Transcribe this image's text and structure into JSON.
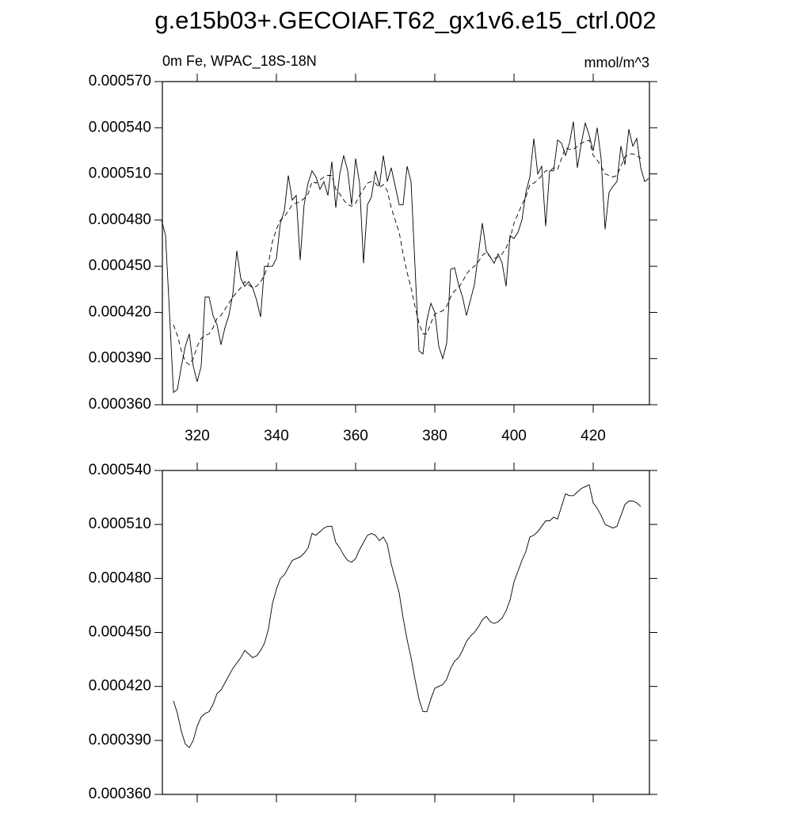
{
  "chart_data": [
    {
      "type": "line",
      "title": "g.e15b03+.GECOIAF.T62_gx1v6.e15_ctrl.002",
      "left_string": "0m Fe, WPAC_18S-18N",
      "right_string": "mmol/m^3",
      "x": [
        311,
        312,
        313,
        314,
        315,
        316,
        317,
        318,
        319,
        320,
        321,
        322,
        323,
        324,
        325,
        326,
        327,
        328,
        329,
        330,
        331,
        332,
        333,
        334,
        335,
        336,
        337,
        338,
        339,
        340,
        341,
        342,
        343,
        344,
        345,
        346,
        347,
        348,
        349,
        350,
        351,
        352,
        353,
        354,
        355,
        356,
        357,
        358,
        359,
        360,
        361,
        362,
        363,
        364,
        365,
        366,
        367,
        368,
        369,
        370,
        371,
        372,
        373,
        374,
        375,
        376,
        377,
        378,
        379,
        380,
        381,
        382,
        383,
        384,
        385,
        386,
        387,
        388,
        389,
        390,
        391,
        392,
        393,
        394,
        395,
        396,
        397,
        398,
        399,
        400,
        401,
        402,
        403,
        404,
        405,
        406,
        407,
        408,
        409,
        410,
        411,
        412,
        413,
        414,
        415,
        416,
        417,
        418,
        419,
        420,
        421,
        422,
        423,
        424,
        425,
        426,
        427,
        428,
        429,
        430,
        431,
        432,
        433,
        434
      ],
      "series": [
        {
          "color": "#000000",
          "style": "solid",
          "values": [
            0.00048,
            0.00047,
            0.00042,
            0.000368,
            0.00037,
            0.000385,
            0.000398,
            0.000406,
            0.000385,
            0.000375,
            0.000385,
            0.00043,
            0.00043,
            0.000418,
            0.000412,
            0.000399,
            0.00041,
            0.000418,
            0.000432,
            0.00046,
            0.000442,
            0.000437,
            0.00044,
            0.000436,
            0.000428,
            0.000417,
            0.00045,
            0.00045,
            0.00045,
            0.000455,
            0.000478,
            0.000486,
            0.000509,
            0.000493,
            0.000496,
            0.000454,
            0.00049,
            0.000504,
            0.000512,
            0.000508,
            0.0005,
            0.000505,
            0.000496,
            0.000518,
            0.000488,
            0.00051,
            0.000522,
            0.000512,
            0.00049,
            0.00052,
            0.000504,
            0.000452,
            0.00049,
            0.000495,
            0.000512,
            0.000502,
            0.000522,
            0.000505,
            0.000514,
            0.000502,
            0.00049,
            0.00049,
            0.000515,
            0.000505,
            0.00045,
            0.000395,
            0.000393,
            0.000415,
            0.000426,
            0.00042,
            0.000398,
            0.00039,
            0.0004,
            0.000448,
            0.000449,
            0.000438,
            0.00043,
            0.000418,
            0.000428,
            0.000438,
            0.000458,
            0.000478,
            0.00046,
            0.000456,
            0.000452,
            0.000458,
            0.000452,
            0.000437,
            0.00047,
            0.000468,
            0.000472,
            0.00048,
            0.000498,
            0.000508,
            0.000533,
            0.00051,
            0.000515,
            0.000476,
            0.000512,
            0.000512,
            0.000532,
            0.00053,
            0.000522,
            0.00053,
            0.000544,
            0.000514,
            0.00053,
            0.000543,
            0.000535,
            0.000525,
            0.00054,
            0.00052,
            0.000474,
            0.000498,
            0.000502,
            0.000505,
            0.000528,
            0.000516,
            0.000539,
            0.000528,
            0.000533,
            0.000514,
            0.000505,
            0.000507
          ]
        },
        {
          "color": "#000000",
          "style": "dashed",
          "values": [
            null,
            null,
            null,
            0.000412,
            0.000405,
            0.000395,
            0.000388,
            0.000386,
            0.00039,
            0.000398,
            0.000403,
            0.000405,
            0.000406,
            0.00041,
            0.000416,
            0.000418,
            0.000422,
            0.000426,
            0.00043,
            0.000433,
            0.000436,
            0.00044,
            0.000438,
            0.000436,
            0.000437,
            0.00044,
            0.000444,
            0.000452,
            0.000466,
            0.000474,
            0.00048,
            0.000482,
            0.000486,
            0.00049,
            0.000491,
            0.000492,
            0.000494,
            0.000497,
            0.000505,
            0.000504,
            0.000506,
            0.000508,
            0.000509,
            0.000509,
            0.0005,
            0.000497,
            0.000493,
            0.00049,
            0.000489,
            0.000491,
            0.000496,
            0.0005,
            0.000504,
            0.000505,
            0.000504,
            0.000501,
            0.000503,
            0.000499,
            0.000488,
            0.00048,
            0.000472,
            0.000458,
            0.000446,
            0.000436,
            0.000424,
            0.000413,
            0.000406,
            0.000406,
            0.000413,
            0.000419,
            0.00042,
            0.000421,
            0.000424,
            0.00043,
            0.000434,
            0.000436,
            0.00044,
            0.000445,
            0.000448,
            0.00045,
            0.000453,
            0.000457,
            0.000459,
            0.000456,
            0.000455,
            0.000456,
            0.000458,
            0.000462,
            0.000468,
            0.000478,
            0.000484,
            0.00049,
            0.000495,
            0.000503,
            0.000504,
            0.000506,
            0.000509,
            0.000512,
            0.000512,
            0.000514,
            0.000513,
            0.00052,
            0.000527,
            0.000526,
            0.000526,
            0.000528,
            0.00053,
            0.000531,
            0.000532,
            0.000522,
            0.000519,
            0.000515,
            0.00051,
            0.000509,
            0.000508,
            0.000509,
            0.000515,
            0.000521,
            0.000523,
            0.000523,
            0.000522,
            0.00052,
            null,
            null
          ]
        }
      ],
      "xlim": [
        311.2,
        434.2
      ],
      "xticks": [
        320,
        340,
        360,
        380,
        400,
        420
      ],
      "ylim": [
        0.00036,
        0.00057
      ],
      "yticks": [
        {
          "value": 0.00036,
          "label": "0.000360"
        },
        {
          "value": 0.00039,
          "label": "0.000390"
        },
        {
          "value": 0.00042,
          "label": "0.000420"
        },
        {
          "value": 0.00045,
          "label": "0.000450"
        },
        {
          "value": 0.00048,
          "label": "0.000480"
        },
        {
          "value": 0.00051,
          "label": "0.000510"
        },
        {
          "value": 0.00054,
          "label": "0.000540"
        },
        {
          "value": 0.00057,
          "label": "0.000570"
        }
      ],
      "grid": false
    },
    {
      "type": "line",
      "x": [
        311,
        312,
        313,
        314,
        315,
        316,
        317,
        318,
        319,
        320,
        321,
        322,
        323,
        324,
        325,
        326,
        327,
        328,
        329,
        330,
        331,
        332,
        333,
        334,
        335,
        336,
        337,
        338,
        339,
        340,
        341,
        342,
        343,
        344,
        345,
        346,
        347,
        348,
        349,
        350,
        351,
        352,
        353,
        354,
        355,
        356,
        357,
        358,
        359,
        360,
        361,
        362,
        363,
        364,
        365,
        366,
        367,
        368,
        369,
        370,
        371,
        372,
        373,
        374,
        375,
        376,
        377,
        378,
        379,
        380,
        381,
        382,
        383,
        384,
        385,
        386,
        387,
        388,
        389,
        390,
        391,
        392,
        393,
        394,
        395,
        396,
        397,
        398,
        399,
        400,
        401,
        402,
        403,
        404,
        405,
        406,
        407,
        408,
        409,
        410,
        411,
        412,
        413,
        414,
        415,
        416,
        417,
        418,
        419,
        420,
        421,
        422,
        423,
        424,
        425,
        426,
        427,
        428,
        429,
        430,
        431,
        432,
        433,
        434
      ],
      "series": [
        {
          "color": "#000000",
          "style": "solid",
          "values": [
            null,
            null,
            null,
            0.000412,
            0.000405,
            0.000395,
            0.000388,
            0.000386,
            0.00039,
            0.000398,
            0.000403,
            0.000405,
            0.000406,
            0.00041,
            0.000416,
            0.000418,
            0.000422,
            0.000426,
            0.00043,
            0.000433,
            0.000436,
            0.00044,
            0.000438,
            0.000436,
            0.000437,
            0.00044,
            0.000444,
            0.000452,
            0.000466,
            0.000474,
            0.00048,
            0.000482,
            0.000486,
            0.00049,
            0.000491,
            0.000492,
            0.000494,
            0.000497,
            0.000505,
            0.000504,
            0.000506,
            0.000508,
            0.000509,
            0.000509,
            0.0005,
            0.000497,
            0.000493,
            0.00049,
            0.000489,
            0.000491,
            0.000496,
            0.0005,
            0.000504,
            0.000505,
            0.000504,
            0.000501,
            0.000503,
            0.000499,
            0.000488,
            0.00048,
            0.000472,
            0.000458,
            0.000446,
            0.000436,
            0.000424,
            0.000413,
            0.000406,
            0.000406,
            0.000413,
            0.000419,
            0.00042,
            0.000421,
            0.000424,
            0.00043,
            0.000434,
            0.000436,
            0.00044,
            0.000445,
            0.000448,
            0.00045,
            0.000453,
            0.000457,
            0.000459,
            0.000456,
            0.000455,
            0.000456,
            0.000458,
            0.000462,
            0.000468,
            0.000478,
            0.000484,
            0.00049,
            0.000495,
            0.000503,
            0.000504,
            0.000506,
            0.000509,
            0.000512,
            0.000512,
            0.000514,
            0.000513,
            0.00052,
            0.000527,
            0.000526,
            0.000526,
            0.000528,
            0.00053,
            0.000531,
            0.000532,
            0.000522,
            0.000519,
            0.000515,
            0.00051,
            0.000509,
            0.000508,
            0.000509,
            0.000515,
            0.000521,
            0.000523,
            0.000523,
            0.000522,
            0.00052,
            null,
            null
          ]
        }
      ],
      "xlim": [
        311.2,
        434.2
      ],
      "xticks": [
        320,
        340,
        360,
        380,
        400,
        420
      ],
      "ylim": [
        0.00036,
        0.00054
      ],
      "yticks": [
        {
          "value": 0.00036,
          "label": "0.000360"
        },
        {
          "value": 0.00039,
          "label": "0.000390"
        },
        {
          "value": 0.00042,
          "label": "0.000420"
        },
        {
          "value": 0.00045,
          "label": "0.000450"
        },
        {
          "value": 0.00048,
          "label": "0.000480"
        },
        {
          "value": 0.00051,
          "label": "0.000510"
        },
        {
          "value": 0.00054,
          "label": "0.000540"
        }
      ],
      "grid": false
    }
  ]
}
